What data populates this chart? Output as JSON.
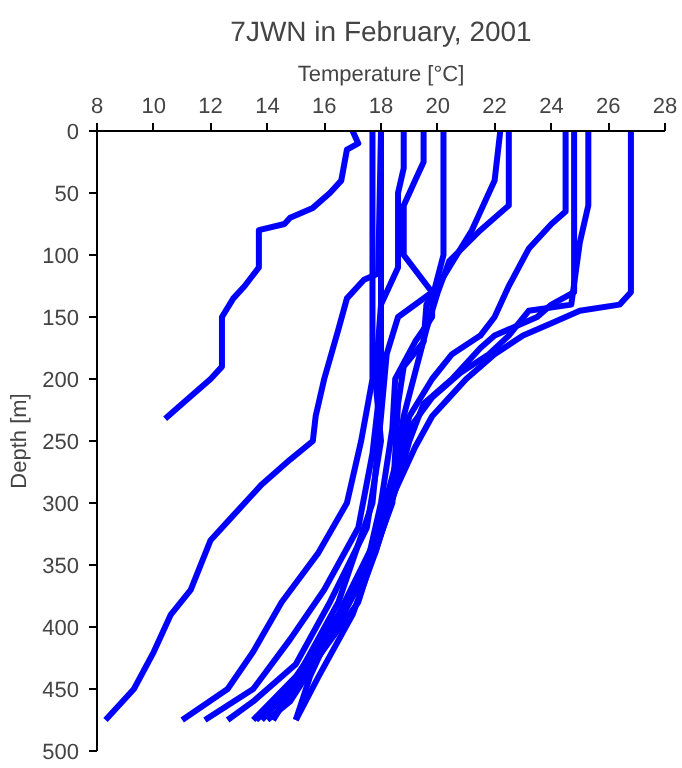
{
  "chart_data": {
    "type": "line",
    "title": "7JWN in February, 2001",
    "xlabel": "Temperature [°C]",
    "ylabel": "Depth [m]",
    "xlim": [
      8,
      28
    ],
    "xticks": [
      8,
      10,
      12,
      14,
      16,
      18,
      20,
      22,
      24,
      26,
      28
    ],
    "ylim": [
      500,
      0
    ],
    "yticks": [
      0,
      50,
      100,
      150,
      200,
      250,
      300,
      350,
      400,
      450,
      500
    ],
    "grid": false,
    "marker": "none",
    "line_style": "solid",
    "series": [
      {
        "color": "#0000ff",
        "x": [
          17,
          17.2,
          16.8,
          16.6,
          16.2,
          15.6,
          14.8,
          14.6,
          13.7,
          13.7,
          13.2,
          12.8,
          12.4,
          12.4,
          12,
          11,
          10.4
        ],
        "values": [
          0,
          10,
          15,
          40,
          50,
          62,
          70,
          75,
          80,
          110,
          125,
          135,
          150,
          190,
          200,
          220,
          232
        ]
      },
      {
        "color": "#0000ff",
        "x": [
          18,
          17.9,
          17.4,
          16.8,
          16.5,
          16,
          15.7,
          15.6,
          14.8,
          13.8,
          12.8,
          12,
          11.3,
          10.6,
          10,
          9.3,
          8.3
        ],
        "values": [
          0,
          115,
          120,
          135,
          160,
          200,
          230,
          250,
          265,
          285,
          310,
          330,
          370,
          390,
          420,
          450,
          475
        ]
      },
      {
        "color": "#0000ff",
        "x": [
          17.7,
          17.7,
          17.3,
          16.8,
          15.8,
          14.5,
          13.5,
          12.6,
          11
        ],
        "values": [
          0,
          200,
          250,
          300,
          340,
          380,
          420,
          450,
          475
        ]
      },
      {
        "color": "#0000ff",
        "x": [
          18,
          18,
          17.7,
          17.2,
          16,
          14.8,
          13.5,
          11.8
        ],
        "values": [
          0,
          200,
          260,
          320,
          370,
          410,
          450,
          475
        ]
      },
      {
        "color": "#0000ff",
        "x": [
          18.8,
          18.8,
          18.6,
          18.6,
          18,
          17.8,
          18,
          17.5,
          16.2,
          15,
          13.5,
          12.6
        ],
        "values": [
          0,
          30,
          50,
          110,
          140,
          200,
          250,
          320,
          380,
          430,
          460,
          475
        ]
      },
      {
        "color": "#0000ff",
        "x": [
          19.5,
          19.5,
          19.2,
          18.8,
          18.8,
          19.8,
          18.6,
          18.2,
          18,
          17.7,
          16.5,
          15.3,
          14.2
        ],
        "values": [
          0,
          25,
          40,
          60,
          100,
          130,
          150,
          180,
          230,
          300,
          380,
          430,
          475
        ]
      },
      {
        "color": "#0000ff",
        "x": [
          20.2,
          20.2,
          19.8,
          19.8,
          19.2,
          18.5,
          18.4,
          18,
          17.5,
          16.3,
          15.5,
          15
        ],
        "values": [
          0,
          100,
          135,
          150,
          170,
          200,
          240,
          300,
          350,
          400,
          440,
          475
        ]
      },
      {
        "color": "#0000ff",
        "x": [
          22.2,
          22,
          21.2,
          20.4,
          19.6,
          19.5,
          18.8,
          18.6,
          18.4,
          17.6,
          16,
          14.2
        ],
        "values": [
          0,
          40,
          80,
          110,
          140,
          170,
          190,
          220,
          300,
          350,
          410,
          475
        ]
      },
      {
        "color": "#0000ff",
        "x": [
          22.5,
          22.5,
          21.5,
          20.4,
          20,
          19.6,
          19.2,
          18.8,
          18.3,
          17.2,
          15.6,
          13.8
        ],
        "values": [
          0,
          60,
          80,
          105,
          130,
          160,
          195,
          230,
          300,
          380,
          430,
          475
        ]
      },
      {
        "color": "#0000ff",
        "x": [
          24.5,
          24.5,
          24,
          23.2,
          22.5,
          22,
          21.5,
          20.5,
          19.8,
          19,
          18.5,
          17.8,
          16.5,
          15,
          13.5
        ],
        "values": [
          0,
          65,
          75,
          95,
          125,
          150,
          165,
          180,
          200,
          230,
          270,
          330,
          390,
          440,
          475
        ]
      },
      {
        "color": "#0000ff",
        "x": [
          24.8,
          24.8,
          24,
          23.5,
          22,
          21.5,
          20.5,
          19.5,
          19,
          18.5,
          17.6,
          16.2,
          14.8,
          14
        ],
        "values": [
          0,
          130,
          140,
          150,
          165,
          175,
          200,
          220,
          250,
          290,
          350,
          410,
          460,
          475
        ]
      },
      {
        "color": "#0000ff",
        "x": [
          25.3,
          25.3,
          25,
          24.7,
          23.2,
          22.5,
          21.8,
          20.8,
          19.8,
          19,
          18.6,
          17.8,
          16.4,
          14.8,
          13.6
        ],
        "values": [
          0,
          60,
          90,
          140,
          145,
          165,
          180,
          195,
          215,
          240,
          280,
          340,
          400,
          450,
          475
        ]
      },
      {
        "color": "#0000ff",
        "x": [
          26.8,
          26.8,
          26.4,
          25,
          24,
          23,
          22,
          21,
          20.4,
          19.8,
          19.2,
          18.5,
          17.8,
          17,
          15.8,
          15
        ],
        "values": [
          0,
          130,
          140,
          145,
          155,
          165,
          180,
          200,
          215,
          230,
          255,
          290,
          340,
          390,
          440,
          475
        ]
      }
    ]
  }
}
